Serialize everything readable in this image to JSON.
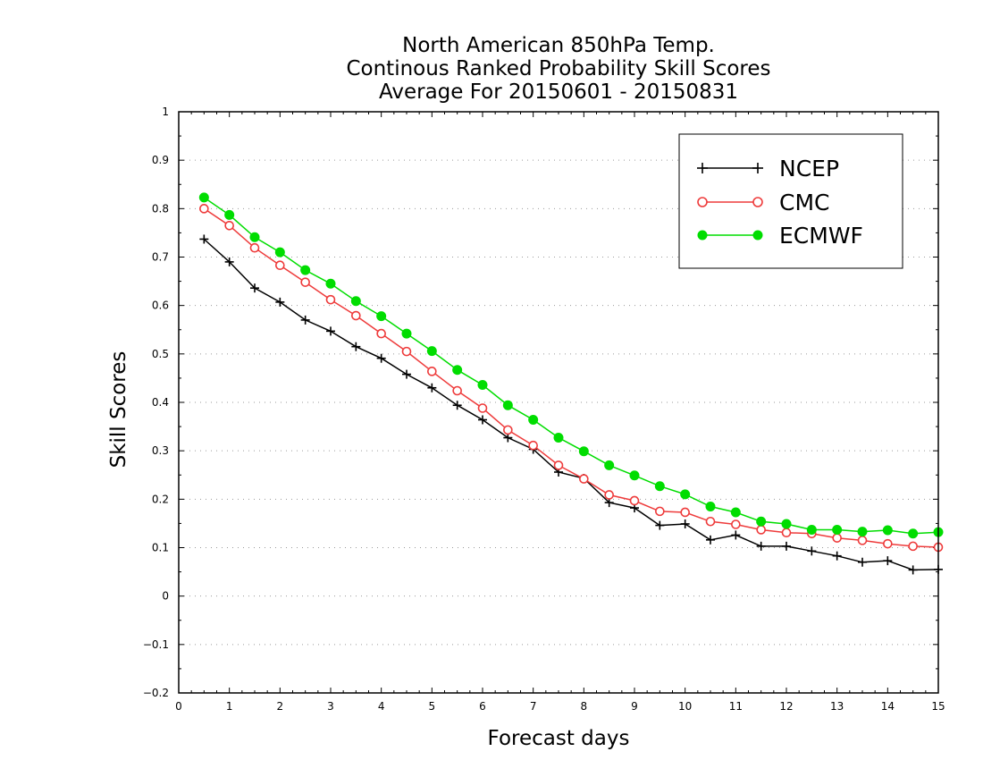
{
  "chart_data": {
    "type": "line",
    "title_lines": [
      "North American 850hPa Temp.",
      "Continous Ranked Probability Skill Scores",
      "Average For 20150601 - 20150831"
    ],
    "xlabel": "Forecast days",
    "ylabel": "Skill Scores",
    "xlim": [
      0,
      15
    ],
    "ylim": [
      -0.2,
      1
    ],
    "x_ticks": [
      0,
      1,
      2,
      3,
      4,
      5,
      6,
      7,
      8,
      9,
      10,
      11,
      12,
      13,
      14,
      15
    ],
    "x_tick_labels": [
      "0",
      "1",
      "2",
      "3",
      "4",
      "5",
      "6",
      "7",
      "8",
      "9",
      "10",
      "11",
      "12",
      "13",
      "14",
      "15"
    ],
    "y_ticks": [
      -0.2,
      -0.1,
      0,
      0.1,
      0.2,
      0.3,
      0.4,
      0.5,
      0.6,
      0.7,
      0.8,
      0.9,
      1
    ],
    "y_tick_labels": [
      "−0.2",
      "−0.1",
      "0",
      "0.1",
      "0.2",
      "0.3",
      "0.4",
      "0.5",
      "0.6",
      "0.7",
      "0.8",
      "0.9",
      "1"
    ],
    "grid": "horizontal dotted",
    "legend_position": "top-right",
    "x": [
      0.5,
      1,
      1.5,
      2,
      2.5,
      3,
      3.5,
      4,
      4.5,
      5,
      5.5,
      6,
      6.5,
      7,
      7.5,
      8,
      8.5,
      9,
      9.5,
      10,
      10.5,
      11,
      11.5,
      12,
      12.5,
      13,
      13.5,
      14,
      14.5,
      15
    ],
    "series": [
      {
        "name": "NCEP",
        "color": "#000000",
        "marker": "plus",
        "values": [
          0.737,
          0.69,
          0.636,
          0.607,
          0.57,
          0.547,
          0.515,
          0.491,
          0.458,
          0.43,
          0.394,
          0.364,
          0.327,
          0.303,
          0.256,
          0.243,
          0.193,
          0.182,
          0.146,
          0.149,
          0.116,
          0.126,
          0.103,
          0.103,
          0.093,
          0.083,
          0.07,
          0.073,
          0.054,
          0.055
        ]
      },
      {
        "name": "CMC",
        "color": "#ee3b3b",
        "marker": "open-circle",
        "values": [
          0.8,
          0.765,
          0.719,
          0.683,
          0.648,
          0.612,
          0.579,
          0.542,
          0.505,
          0.464,
          0.424,
          0.388,
          0.343,
          0.311,
          0.27,
          0.242,
          0.209,
          0.197,
          0.175,
          0.173,
          0.154,
          0.148,
          0.137,
          0.131,
          0.129,
          0.12,
          0.115,
          0.108,
          0.103,
          0.101
        ]
      },
      {
        "name": "ECMWF",
        "color": "#00dd00",
        "marker": "filled-circle",
        "values": [
          0.823,
          0.787,
          0.741,
          0.71,
          0.673,
          0.645,
          0.609,
          0.578,
          0.542,
          0.506,
          0.467,
          0.436,
          0.394,
          0.364,
          0.327,
          0.299,
          0.27,
          0.249,
          0.227,
          0.21,
          0.185,
          0.173,
          0.154,
          0.149,
          0.137,
          0.137,
          0.133,
          0.136,
          0.129,
          0.132
        ]
      }
    ]
  }
}
